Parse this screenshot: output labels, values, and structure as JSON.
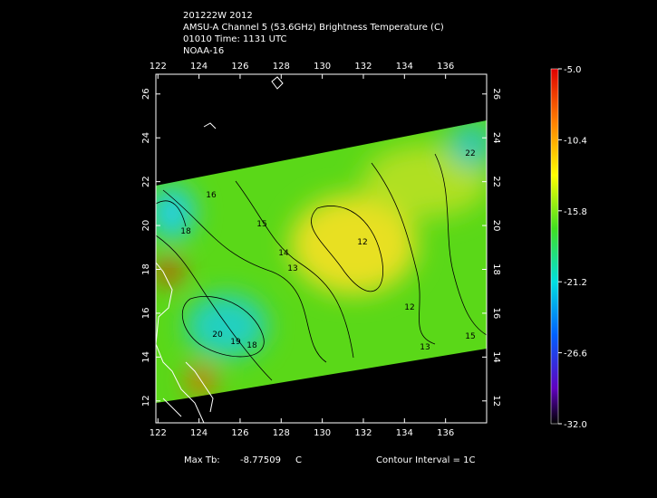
{
  "header": {
    "lines": [
      "201222W 2012",
      "AMSU-A Channel 5 (53.6GHz) Brightness Temperature (C)",
      "01010 Time: 1131 UTC",
      "NOAA-16"
    ]
  },
  "map": {
    "lonlim": [
      121.9,
      138
    ],
    "latlim": [
      11,
      26.9
    ],
    "lon_ticks": [
      122,
      124,
      126,
      128,
      130,
      132,
      134,
      136
    ],
    "lat_ticks": [
      12,
      14,
      16,
      18,
      20,
      22,
      24,
      26
    ],
    "contour_labels": [
      22,
      16,
      18,
      15,
      14,
      13,
      12,
      12,
      20,
      19,
      18,
      13,
      15
    ]
  },
  "colorbar": {
    "lim": [
      -32,
      -5
    ],
    "ticks": [
      {
        "value": -5,
        "label": "-5.0"
      },
      -10.4,
      -15.8,
      -21.2,
      -26.6,
      {
        "value": -32,
        "label": "-32.0"
      }
    ]
  },
  "footer": {
    "max_label": "Max Tb:",
    "max_value": -8.77509,
    "unit": "C",
    "contour_interval": "Contour Interval = 1C"
  }
}
